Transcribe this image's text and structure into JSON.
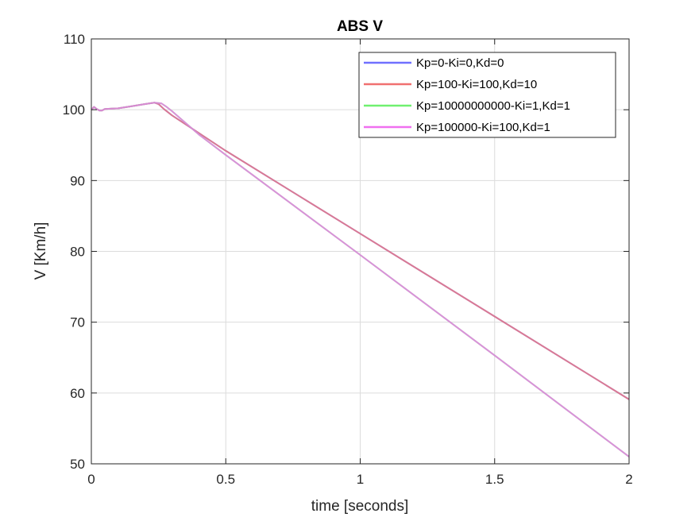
{
  "chart_data": {
    "type": "line",
    "title": "ABS V",
    "xlabel": "time [seconds]",
    "ylabel": "V [Km/h]",
    "xlim": [
      0,
      2
    ],
    "ylim": [
      50,
      110
    ],
    "x_ticks": [
      "0",
      "0.5",
      "1",
      "1.5",
      "2"
    ],
    "y_ticks": [
      "50",
      "60",
      "70",
      "80",
      "90",
      "100",
      "110"
    ],
    "grid": true,
    "legend_position": "top-right",
    "series": [
      {
        "name": "Kp=0-Ki=0,Kd=0",
        "color": "#7070ff",
        "x": [
          0,
          0.01,
          0.02,
          0.03,
          0.04,
          0.05,
          0.1,
          0.15,
          0.2,
          0.235,
          0.25,
          0.27,
          0.3,
          0.5,
          1.0,
          1.5,
          2.0
        ],
        "y": [
          100.0,
          100.4,
          100.1,
          99.9,
          99.9,
          100.1,
          100.2,
          100.5,
          100.8,
          101.0,
          100.8,
          100.1,
          99.2,
          94.2,
          82.5,
          70.8,
          59.1
        ]
      },
      {
        "name": "Kp=100-Ki=100,Kd=10",
        "color": "#f07070",
        "x": [
          0,
          0.01,
          0.02,
          0.03,
          0.04,
          0.05,
          0.1,
          0.15,
          0.2,
          0.235,
          0.25,
          0.27,
          0.3,
          0.5,
          1.0,
          1.5,
          2.0
        ],
        "y": [
          100.0,
          100.4,
          100.1,
          99.9,
          99.9,
          100.1,
          100.2,
          100.5,
          100.8,
          101.0,
          100.8,
          100.1,
          99.2,
          94.2,
          82.5,
          70.8,
          59.1
        ]
      },
      {
        "name": "Kp=10000000000-Ki=1,Kd=1",
        "color": "#70f070",
        "x": [
          0,
          0.01,
          0.02,
          0.03,
          0.04,
          0.05,
          0.1,
          0.15,
          0.2,
          0.235,
          0.26,
          0.28,
          0.3,
          0.4,
          0.5,
          1.0,
          1.5,
          2.0
        ],
        "y": [
          100.0,
          100.4,
          100.1,
          99.9,
          99.9,
          100.1,
          100.2,
          100.5,
          100.8,
          101.0,
          100.9,
          100.4,
          99.8,
          96.5,
          93.6,
          79.5,
          65.3,
          51.0
        ]
      },
      {
        "name": "Kp=100000-Ki=100,Kd=1",
        "color": "#f070f0",
        "x": [
          0,
          0.01,
          0.02,
          0.03,
          0.04,
          0.05,
          0.1,
          0.15,
          0.2,
          0.235,
          0.26,
          0.28,
          0.3,
          0.4,
          0.5,
          1.0,
          1.5,
          2.0
        ],
        "y": [
          100.0,
          100.4,
          100.1,
          99.9,
          99.9,
          100.1,
          100.2,
          100.5,
          100.8,
          101.0,
          100.9,
          100.4,
          99.8,
          96.5,
          93.6,
          79.5,
          65.3,
          51.0
        ]
      }
    ]
  }
}
